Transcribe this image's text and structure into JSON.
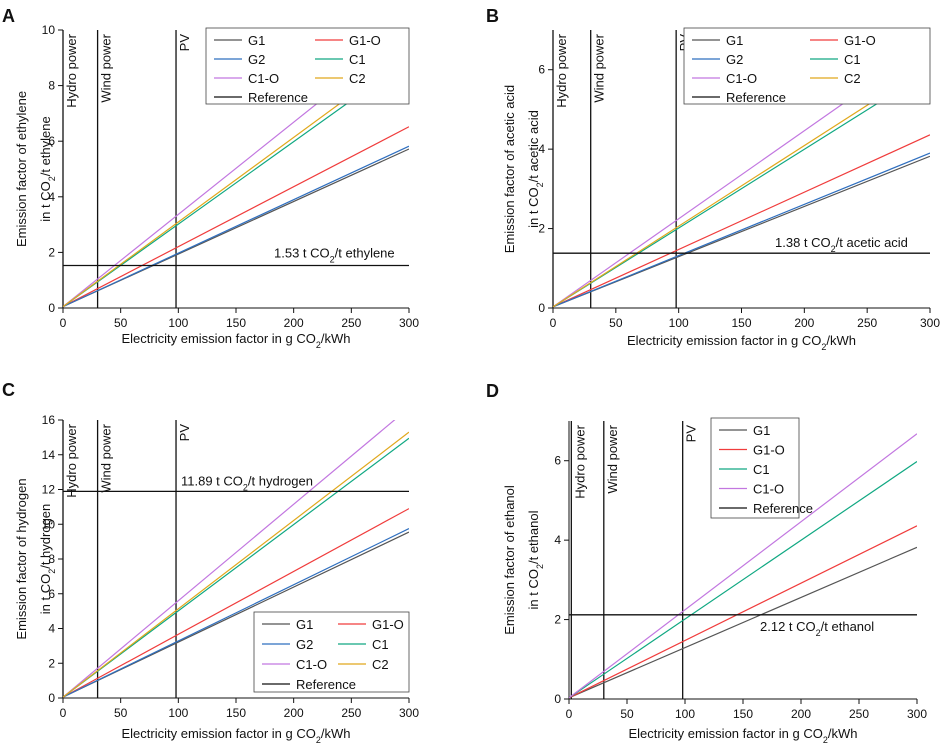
{
  "chart_data": [
    {
      "panel": "A",
      "type": "line",
      "xlabel": "Electricity emission factor in g CO2/kWh",
      "ylabel_line1": "Emission factor of ethylene",
      "ylabel_line2": "in t CO2/t ethylene",
      "xlim": [
        0,
        300
      ],
      "ylim": [
        0,
        10
      ],
      "xticks": [
        0,
        50,
        100,
        150,
        200,
        250,
        300
      ],
      "yticks": [
        0,
        2,
        4,
        6,
        8,
        10
      ],
      "legend_position": "top-right",
      "legend_columns": 2,
      "series": [
        {
          "name": "G1",
          "color": "#555555",
          "x": [
            0,
            300
          ],
          "y": [
            0.05,
            5.72
          ]
        },
        {
          "name": "G1-O",
          "color": "#f03c3c",
          "x": [
            0,
            300
          ],
          "y": [
            0.05,
            6.52
          ]
        },
        {
          "name": "G2",
          "color": "#2f6fbf",
          "x": [
            0,
            300
          ],
          "y": [
            0.05,
            5.82
          ]
        },
        {
          "name": "C1",
          "color": "#10a882",
          "x": [
            0,
            300
          ],
          "y": [
            0.05,
            8.95
          ]
        },
        {
          "name": "C1-O",
          "color": "#c277e0",
          "x": [
            0,
            300
          ],
          "y": [
            0.05,
            10.0
          ]
        },
        {
          "name": "C2",
          "color": "#e0a81c",
          "x": [
            0,
            300
          ],
          "y": [
            0.05,
            9.18
          ]
        }
      ],
      "reference": {
        "legend": "Reference",
        "value": 1.53,
        "label": "1.53 t CO2/t ethylene"
      },
      "vertical_lines": [
        {
          "x": 0,
          "label": "Hydro power"
        },
        {
          "x": 30,
          "label": "Wind power"
        },
        {
          "x": 98,
          "label": "PV"
        }
      ]
    },
    {
      "panel": "B",
      "type": "line",
      "xlabel": "Electricity emission factor in g CO2/kWh",
      "ylabel_line1": "Emission factor of acetic acid",
      "ylabel_line2": "in t CO2/t acetic acid",
      "xlim": [
        0,
        300
      ],
      "ylim": [
        0,
        7
      ],
      "xticks": [
        0,
        50,
        100,
        150,
        200,
        250,
        300
      ],
      "yticks": [
        0,
        2,
        4,
        6
      ],
      "legend_position": "top-right",
      "legend_columns": 2,
      "series": [
        {
          "name": "G1",
          "color": "#555555",
          "x": [
            0,
            300
          ],
          "y": [
            0.03,
            3.82
          ]
        },
        {
          "name": "G1-O",
          "color": "#f03c3c",
          "x": [
            0,
            300
          ],
          "y": [
            0.03,
            4.36
          ]
        },
        {
          "name": "G2",
          "color": "#2f6fbf",
          "x": [
            0,
            300
          ],
          "y": [
            0.03,
            3.9
          ]
        },
        {
          "name": "C1",
          "color": "#10a882",
          "x": [
            0,
            300
          ],
          "y": [
            0.03,
            5.98
          ]
        },
        {
          "name": "C1-O",
          "color": "#c277e0",
          "x": [
            0,
            300
          ],
          "y": [
            0.03,
            6.68
          ]
        },
        {
          "name": "C2",
          "color": "#e0a81c",
          "x": [
            0,
            300
          ],
          "y": [
            0.03,
            6.12
          ]
        }
      ],
      "reference": {
        "legend": "Reference",
        "value": 1.38,
        "label": "1.38 t CO2/t acetic acid"
      },
      "vertical_lines": [
        {
          "x": 0,
          "label": "Hydro power"
        },
        {
          "x": 30,
          "label": "Wind power"
        },
        {
          "x": 98,
          "label": "PV"
        }
      ]
    },
    {
      "panel": "C",
      "type": "line",
      "xlabel": "Electricity emission factor in g CO2/kWh",
      "ylabel_line1": "Emission factor of hydrogen",
      "ylabel_line2": "in t CO2/t hydrogen",
      "xlim": [
        0,
        300
      ],
      "ylim": [
        0,
        16
      ],
      "xticks": [
        0,
        50,
        100,
        150,
        200,
        250,
        300
      ],
      "yticks": [
        0,
        2,
        4,
        6,
        8,
        10,
        12,
        14,
        16
      ],
      "legend_position": "bottom-right",
      "legend_columns": 2,
      "series": [
        {
          "name": "G1",
          "color": "#555555",
          "x": [
            0,
            300
          ],
          "y": [
            0.05,
            9.55
          ]
        },
        {
          "name": "G1-O",
          "color": "#f03c3c",
          "x": [
            0,
            300
          ],
          "y": [
            0.05,
            10.9
          ]
        },
        {
          "name": "G2",
          "color": "#2f6fbf",
          "x": [
            0,
            300
          ],
          "y": [
            0.05,
            9.75
          ]
        },
        {
          "name": "C1",
          "color": "#10a882",
          "x": [
            0,
            300
          ],
          "y": [
            0.05,
            14.95
          ]
        },
        {
          "name": "C1-O",
          "color": "#c277e0",
          "x": [
            0,
            300
          ],
          "y": [
            0.05,
            16.7
          ]
        },
        {
          "name": "C2",
          "color": "#e0a81c",
          "x": [
            0,
            300
          ],
          "y": [
            0.05,
            15.3
          ]
        }
      ],
      "reference": {
        "legend": "Reference",
        "value": 11.89,
        "label": "11.89 t CO2/t hydrogen"
      },
      "vertical_lines": [
        {
          "x": 0,
          "label": "Hydro power"
        },
        {
          "x": 30,
          "label": "Wind power"
        },
        {
          "x": 98,
          "label": "PV"
        }
      ]
    },
    {
      "panel": "D",
      "type": "line",
      "xlabel": "Electricity emission factor in g CO2/kWh",
      "ylabel_line1": "Emission factor of ethanol",
      "ylabel_line2": "in t CO2/t ethanol",
      "xlim": [
        0,
        300
      ],
      "ylim": [
        0,
        7
      ],
      "xticks": [
        0,
        50,
        100,
        150,
        200,
        250,
        300
      ],
      "yticks": [
        0,
        2,
        4,
        6
      ],
      "legend_position": "top-center",
      "legend_columns": 1,
      "series": [
        {
          "name": "G1",
          "color": "#555555",
          "x": [
            0,
            300
          ],
          "y": [
            0.03,
            3.82
          ]
        },
        {
          "name": "G1-O",
          "color": "#f03c3c",
          "x": [
            0,
            300
          ],
          "y": [
            0.03,
            4.36
          ]
        },
        {
          "name": "C1",
          "color": "#10a882",
          "x": [
            0,
            300
          ],
          "y": [
            0.03,
            5.98
          ]
        },
        {
          "name": "C1-O",
          "color": "#c277e0",
          "x": [
            0,
            300
          ],
          "y": [
            0.03,
            6.68
          ]
        }
      ],
      "reference": {
        "legend": "Reference",
        "value": 2.12,
        "label": "2.12 t CO2/t ethanol"
      },
      "vertical_lines": [
        {
          "x": 2,
          "label": "Hydro power"
        },
        {
          "x": 30,
          "label": "Wind power"
        },
        {
          "x": 98,
          "label": "PV"
        }
      ]
    }
  ]
}
